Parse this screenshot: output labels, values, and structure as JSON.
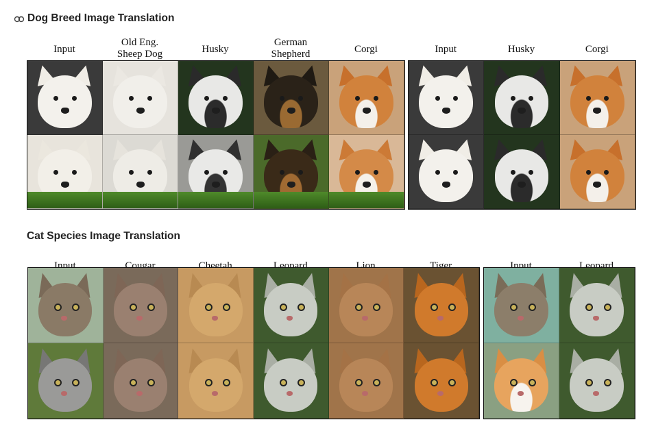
{
  "dog_section": {
    "title": "Dog Breed Image Translation",
    "panel_a": {
      "headers": [
        "Input",
        "Old Eng.\nSheep Dog",
        "Husky",
        "German\nShepherd",
        "Corgi"
      ],
      "rows": [
        [
          "samoyed",
          "sheepdog",
          "husky",
          "shepherd",
          "corgi"
        ],
        [
          "samoyed-grass",
          "sheepdog-grass",
          "husky-grass",
          "shepherd-grass",
          "corgi-grass"
        ]
      ]
    },
    "panel_b": {
      "headers": [
        "Input",
        "Husky",
        "Corgi"
      ],
      "rows": [
        [
          "samoyed",
          "husky",
          "corgi"
        ],
        [
          "samoyed",
          "husky",
          "corgi"
        ]
      ]
    }
  },
  "cat_section": {
    "title": "Cat Species Image Translation",
    "panel_a": {
      "headers": [
        "Input",
        "Cougar",
        "Cheetah",
        "Leopard",
        "Lion",
        "Tiger"
      ],
      "rows": [
        [
          "tabby",
          "cougar",
          "cheetah",
          "snowleopard",
          "lion",
          "tiger"
        ],
        [
          "silvertabby",
          "cougar",
          "cheetah",
          "snowleopard",
          "lion",
          "tiger"
        ]
      ]
    },
    "panel_b": {
      "headers": [
        "Input",
        "Leopard"
      ],
      "rows": [
        [
          "tabby-wide",
          "snowleopard"
        ],
        [
          "orangecat",
          "snowleopard"
        ]
      ]
    }
  },
  "animal_palette": {
    "samoyed": {
      "bg": "#3a3a3a",
      "face": "#f3f1ec",
      "ear": "#f0ede6",
      "kind": "dog"
    },
    "samoyed-grass": {
      "bg": "#e8e4dc",
      "face": "#f2efe8",
      "ear": "#ebe7de",
      "kind": "dog",
      "grass": true
    },
    "sheepdog": {
      "bg": "#e6e3dd",
      "face": "#f1efea",
      "ear": "#ebe8e2",
      "kind": "dog"
    },
    "sheepdog-grass": {
      "bg": "#dcdad4",
      "face": "#eeece6",
      "ear": "#e6e3dc",
      "kind": "dog",
      "grass": true
    },
    "husky": {
      "bg": "#23351e",
      "face": "#e8e8e6",
      "ear": "#2a2a2a",
      "mask": "#2b2b2b",
      "kind": "dog"
    },
    "husky-grass": {
      "bg": "#9a9a96",
      "face": "#e9e9e7",
      "ear": "#303030",
      "mask": "#333333",
      "kind": "dog",
      "grass": true
    },
    "shepherd": {
      "bg": "#6b5a3e",
      "face": "#2a2218",
      "ear": "#1f1a13",
      "mask": "#9a6a32",
      "kind": "dog"
    },
    "shepherd-grass": {
      "bg": "#4b6a2a",
      "face": "#3a2a18",
      "ear": "#2a2015",
      "mask": "#a06a32",
      "kind": "dog",
      "grass": true
    },
    "corgi": {
      "bg": "#c9a27a",
      "face": "#d1823c",
      "ear": "#c7702c",
      "mask": "#f4f0ea",
      "kind": "dog"
    },
    "corgi-grass": {
      "bg": "#d9b897",
      "face": "#d48a48",
      "ear": "#cc7a36",
      "mask": "#f5f1ea",
      "kind": "dog",
      "grass": true
    },
    "tabby": {
      "bg": "#9fb39a",
      "face": "#8a7a66",
      "ear": "#7a6a58",
      "kind": "cat"
    },
    "silvertabby": {
      "bg": "#5f7a3a",
      "face": "#9a9a98",
      "ear": "#777775",
      "kind": "cat"
    },
    "cougar": {
      "bg": "#7a6a5a",
      "face": "#9a8070",
      "ear": "#7e6656",
      "kind": "cat"
    },
    "cheetah": {
      "bg": "#c79a62",
      "face": "#d4a86c",
      "ear": "#b88a52",
      "kind": "cat"
    },
    "snowleopard": {
      "bg": "#3f5a2e",
      "face": "#c8ccc4",
      "ear": "#a9aea4",
      "kind": "cat"
    },
    "lion": {
      "bg": "#a0744a",
      "face": "#b88658",
      "ear": "#a47246",
      "kind": "cat"
    },
    "tiger": {
      "bg": "#6a5232",
      "face": "#d07a2c",
      "ear": "#b8661e",
      "kind": "cat"
    },
    "tabby-wide": {
      "bg": "#7fb0a0",
      "face": "#8c7e6a",
      "ear": "#7a6c58",
      "kind": "cat"
    },
    "orangecat": {
      "bg": "#8aa082",
      "face": "#e7a45e",
      "ear": "#d98e44",
      "mask": "#f7f3ee",
      "kind": "cat"
    }
  }
}
